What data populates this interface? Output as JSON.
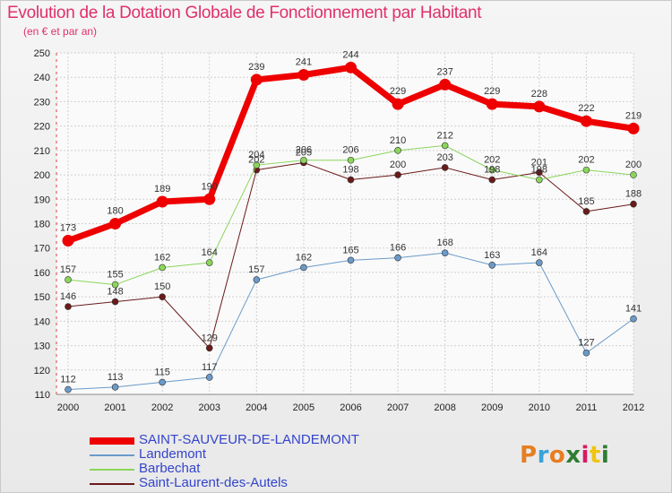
{
  "title": "Evolution de la Dotation Globale de Fonctionnement par Habitant",
  "subtitle": "(en € et par an)",
  "logo": {
    "text": "Proxiti",
    "colors": [
      "#e67e22",
      "#3aa3d9",
      "#e67e22",
      "#2e7d32",
      "#d81b60",
      "#f1c40f",
      "#2e7d32"
    ]
  },
  "chart_data": {
    "type": "line",
    "title": "Evolution de la Dotation Globale de Fonctionnement par Habitant",
    "subtitle": "(en € et par an)",
    "x": [
      2000,
      2001,
      2002,
      2003,
      2004,
      2005,
      2006,
      2007,
      2008,
      2009,
      2010,
      2011,
      2012
    ],
    "ylim": [
      110,
      250
    ],
    "yticks": [
      110,
      120,
      130,
      140,
      150,
      160,
      170,
      180,
      190,
      200,
      210,
      220,
      230,
      240,
      250
    ],
    "grid": true,
    "legend_position": "bottom-left",
    "series": [
      {
        "name": "Saint-Laurent-des-Autels",
        "color": "#6b1a1a",
        "width": 1,
        "values": [
          146,
          148,
          150,
          129,
          202,
          205,
          198,
          200,
          203,
          198,
          201,
          185,
          188
        ]
      },
      {
        "name": "Barbechat",
        "color": "#8ad65a",
        "width": 1,
        "values": [
          157,
          155,
          162,
          164,
          204,
          206,
          206,
          210,
          212,
          202,
          198,
          202,
          200
        ]
      },
      {
        "name": "Landemont",
        "color": "#6a9ac9",
        "width": 1,
        "values": [
          112,
          113,
          115,
          117,
          157,
          162,
          165,
          166,
          168,
          163,
          164,
          127,
          141
        ]
      },
      {
        "name": "SAINT-SAUVEUR-DE-LANDEMONT",
        "color": "#ee0000",
        "width": 7,
        "values": [
          173,
          180,
          189,
          190,
          239,
          241,
          244,
          229,
          237,
          229,
          228,
          222,
          219
        ]
      }
    ]
  }
}
